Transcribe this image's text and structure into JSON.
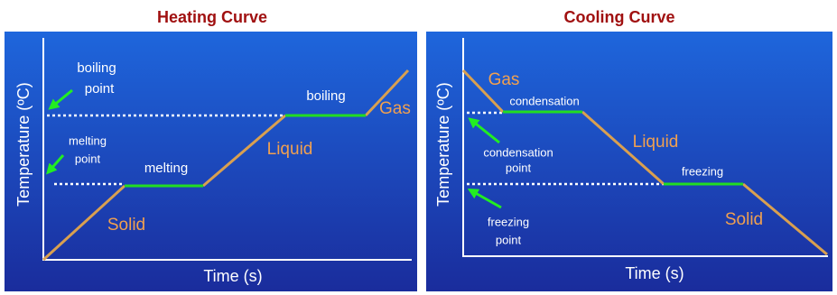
{
  "heating": {
    "title": "Heating Curve",
    "y_axis_label": "Temperature (ºC)",
    "x_axis_label": "Time (s)",
    "boiling_point_label": [
      "boiling",
      "point"
    ],
    "melting_point_label": [
      "melting",
      "point"
    ],
    "phase_labels": {
      "solid": "Solid",
      "liquid": "Liquid",
      "gas": "Gas"
    },
    "transition_labels": {
      "melting": "melting",
      "boiling": "boiling"
    }
  },
  "cooling": {
    "title": "Cooling Curve",
    "y_axis_label": "Temperature (ºC)",
    "x_axis_label": "Time (s)",
    "condensation_point_label": [
      "condensation",
      "point"
    ],
    "freezing_point_label": [
      "freezing",
      "point"
    ],
    "phase_labels": {
      "gas": "Gas",
      "liquid": "Liquid",
      "solid": "Solid"
    },
    "transition_labels": {
      "condensation": "condensation",
      "freezing": "freezing"
    }
  }
}
